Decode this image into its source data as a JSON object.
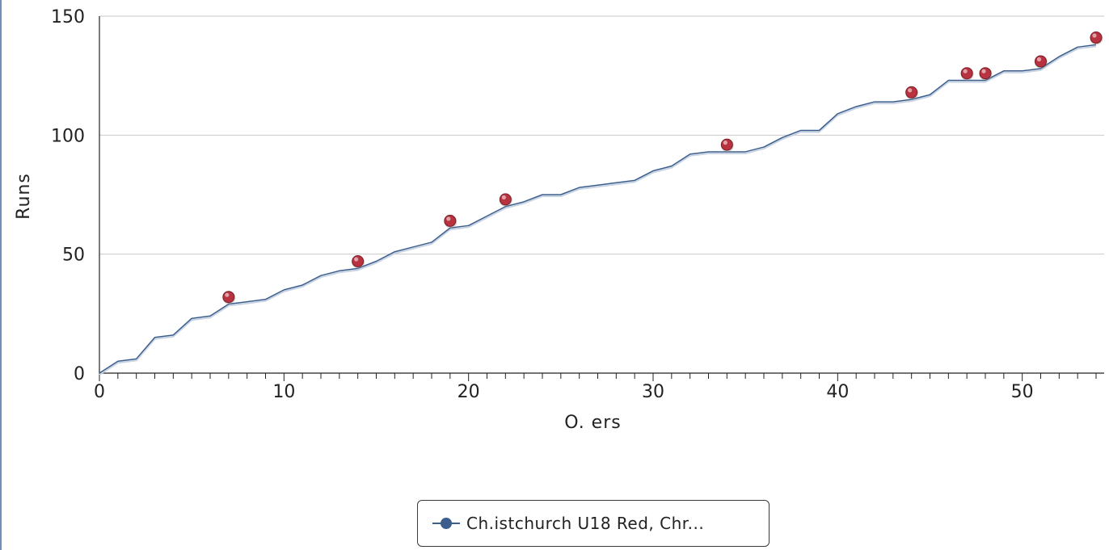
{
  "chart_data": {
    "type": "line",
    "xlabel": "O. ers",
    "ylabel": "Runs",
    "xlim": [
      0,
      54
    ],
    "ylim": [
      0,
      150
    ],
    "x_ticks": [
      0,
      10,
      20,
      30,
      40,
      50
    ],
    "y_ticks": [
      0,
      50,
      100,
      150
    ],
    "grid": "horizontal",
    "legend_placement": "bottom-center",
    "colors": {
      "series_line": "#3c5e8c",
      "wicket_marker": "#b8323f",
      "gridline": "#c9c9c9"
    },
    "series": [
      {
        "name": "Ch.istchurch U18 Red, Chr...",
        "x": [
          0,
          1,
          2,
          3,
          4,
          5,
          6,
          7,
          8,
          9,
          10,
          11,
          12,
          13,
          14,
          15,
          16,
          17,
          18,
          19,
          20,
          21,
          22,
          23,
          24,
          25,
          26,
          27,
          28,
          29,
          30,
          31,
          32,
          33,
          34,
          35,
          36,
          37,
          38,
          39,
          40,
          41,
          42,
          43,
          44,
          45,
          46,
          47,
          48,
          49,
          50,
          51,
          52,
          53,
          54
        ],
        "y": [
          0,
          5,
          6,
          15,
          16,
          23,
          24,
          29,
          30,
          31,
          35,
          37,
          41,
          43,
          44,
          47,
          51,
          53,
          55,
          61,
          62,
          66,
          70,
          72,
          75,
          75,
          78,
          79,
          80,
          81,
          85,
          87,
          92,
          93,
          93,
          93,
          95,
          99,
          102,
          102,
          109,
          112,
          114,
          114,
          115,
          117,
          123,
          123,
          123,
          127,
          127,
          128,
          133,
          137,
          138
        ]
      }
    ],
    "wickets": {
      "x": [
        7,
        14,
        19,
        22,
        34,
        44,
        47,
        48,
        51,
        54
      ],
      "y": [
        32,
        47,
        64,
        73,
        96,
        118,
        126,
        126,
        131,
        141
      ]
    }
  }
}
